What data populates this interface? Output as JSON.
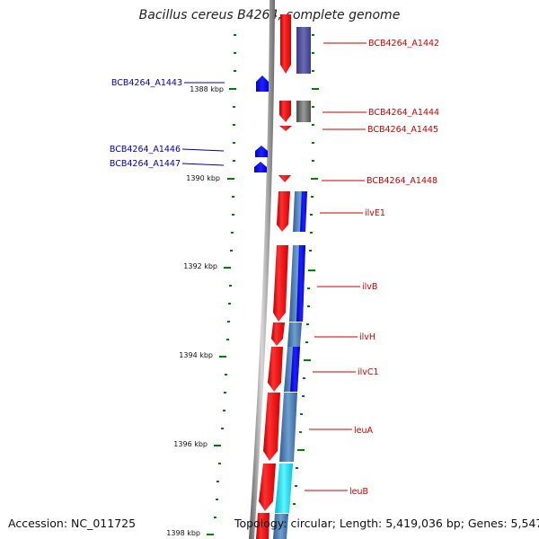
{
  "title": "Bacillus cereus B4264, complete genome",
  "accession": "Accession: NC_011725",
  "topology": "Topology: circular; Length: 5,419,036 bp; Genes: 5,547",
  "colors": {
    "forward_gene": "#ff0000",
    "reverse_gene": "#0000ff",
    "forward_label": "#cc0000",
    "reverse_label": "#0000aa",
    "ticks": "#008000"
  },
  "scale_labels": [
    "1388 kbp",
    "1390 kbp",
    "1392 kbp",
    "1394 kbp",
    "1396 kbp",
    "1398 kbp"
  ],
  "genes": [
    {
      "label": "BCB4264_A1442",
      "strand": "forward"
    },
    {
      "label": "BCB4264_A1443",
      "strand": "reverse"
    },
    {
      "label": "BCB4264_A1444",
      "strand": "forward"
    },
    {
      "label": "BCB4264_A1445",
      "strand": "forward"
    },
    {
      "label": "BCB4264_A1446",
      "strand": "reverse"
    },
    {
      "label": "BCB4264_A1447",
      "strand": "reverse"
    },
    {
      "label": "BCB4264_A1448",
      "strand": "forward"
    },
    {
      "label": "ilvE1",
      "strand": "forward"
    },
    {
      "label": "ilvB",
      "strand": "forward"
    },
    {
      "label": "ilvH",
      "strand": "forward"
    },
    {
      "label": "ilvC1",
      "strand": "forward"
    },
    {
      "label": "leuA",
      "strand": "forward"
    },
    {
      "label": "leuB",
      "strand": "forward"
    }
  ]
}
